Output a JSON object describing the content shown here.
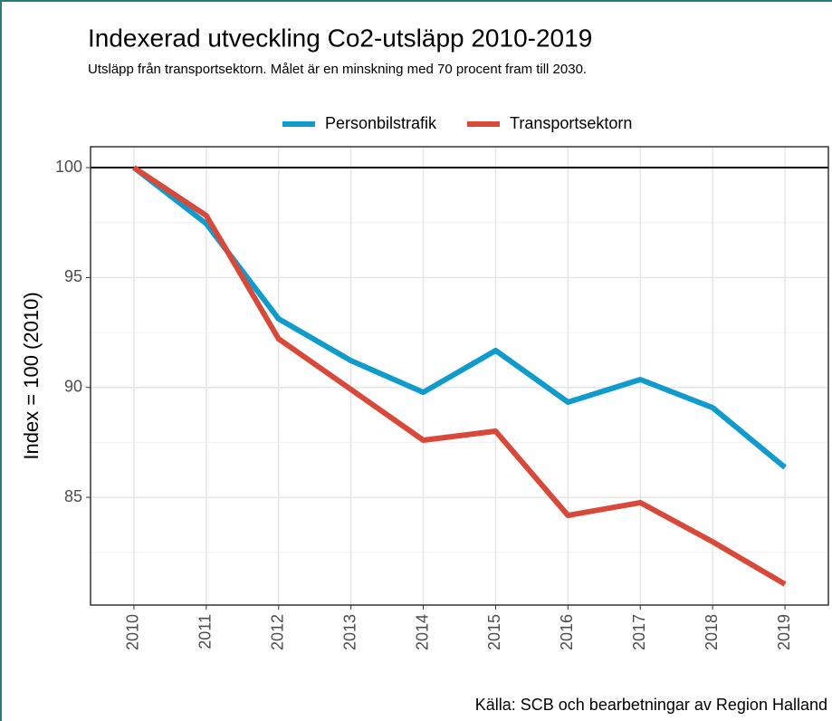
{
  "chart_data": {
    "type": "line",
    "title": "Indexerad utveckling Co2-utsläpp 2010-2019",
    "subtitle": "Utsläpp från transportsektorn. Målet är en minskning med 70 procent fram till 2030.",
    "y_label": "Index = 100 (2010)",
    "caption": "Källa: SCB och bearbetningar av Region Halland",
    "categories": [
      "2010",
      "2011",
      "2012",
      "2013",
      "2014",
      "2015",
      "2016",
      "2017",
      "2018",
      "2019"
    ],
    "series": [
      {
        "name": "Personbilstrafik",
        "color": "#0f9bcb",
        "values": [
          100,
          97.45,
          93.12,
          91.22,
          89.78,
          91.68,
          89.33,
          90.36,
          89.08,
          86.36
        ]
      },
      {
        "name": "Transportsektorn",
        "color": "#d9493a",
        "values": [
          100,
          97.82,
          92.21,
          89.91,
          87.6,
          88.01,
          84.18,
          84.76,
          82.98,
          81.05
        ]
      }
    ],
    "ylim": [
      80.1,
      100.95
    ],
    "yticks": [
      85,
      90,
      95,
      100
    ],
    "y_minor_ticks": [
      82.5,
      87.5,
      92.5,
      97.5
    ],
    "hline": 100,
    "grid": true,
    "legend": "top"
  }
}
